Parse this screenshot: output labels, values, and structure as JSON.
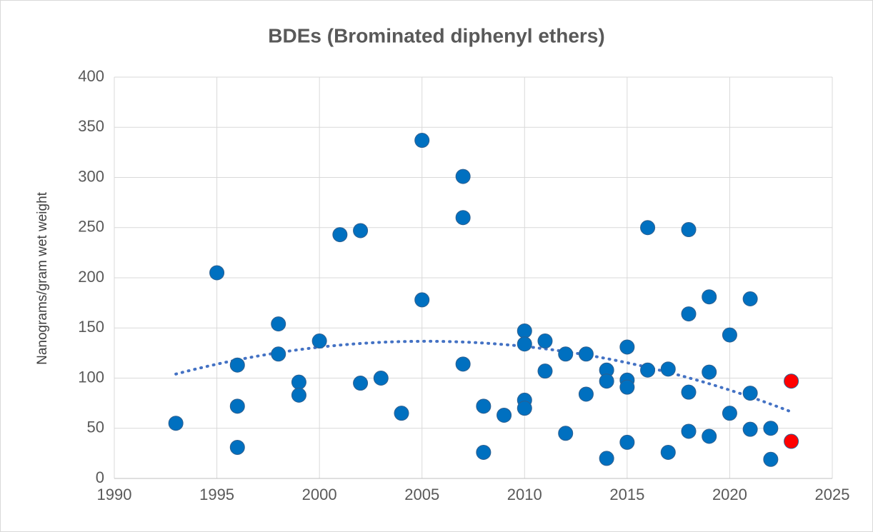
{
  "chart_data": {
    "type": "scatter",
    "title": "BDEs (Brominated diphenyl ethers)",
    "y_label": "Nanograms/gram wet weight",
    "xlim": [
      1990,
      2025
    ],
    "xticks": [
      1990,
      1995,
      2000,
      2005,
      2010,
      2015,
      2020,
      2025
    ],
    "ylim": [
      0,
      400
    ],
    "yticks": [
      0,
      50,
      100,
      150,
      200,
      250,
      300,
      350,
      400
    ],
    "grid": true,
    "trendline": "polynomial",
    "series": [
      {
        "color": "#0070c0",
        "x": [
          1993,
          1995,
          1996,
          1996,
          1996,
          1998,
          1998,
          1999,
          1999,
          2000,
          2001,
          2002,
          2002,
          2003,
          2004,
          2005,
          2005,
          2007,
          2007,
          2007,
          2008,
          2008,
          2009,
          2010,
          2010,
          2010,
          2010,
          2011,
          2011,
          2012,
          2012,
          2013,
          2013,
          2014,
          2014,
          2014,
          2015,
          2015,
          2015,
          2015,
          2016,
          2016,
          2017,
          2017,
          2018,
          2018,
          2018,
          2018,
          2019,
          2019,
          2019,
          2020,
          2020,
          2021,
          2021,
          2021,
          2022,
          2022
        ],
        "values": [
          55,
          205,
          113,
          72,
          31,
          154,
          124,
          96,
          83,
          137,
          243,
          247,
          95,
          100,
          65,
          337,
          178,
          301,
          260,
          114,
          72,
          26,
          63,
          147,
          134,
          78,
          70,
          137,
          107,
          124,
          45,
          124,
          84,
          108,
          97,
          20,
          131,
          98,
          91,
          36,
          250,
          108,
          109,
          26,
          248,
          164,
          86,
          47,
          181,
          106,
          42,
          143,
          65,
          179,
          85,
          49,
          50,
          19
        ]
      },
      {
        "color": "#ff0000",
        "x": [
          2023,
          2023
        ],
        "values": [
          97,
          37
        ]
      }
    ]
  }
}
